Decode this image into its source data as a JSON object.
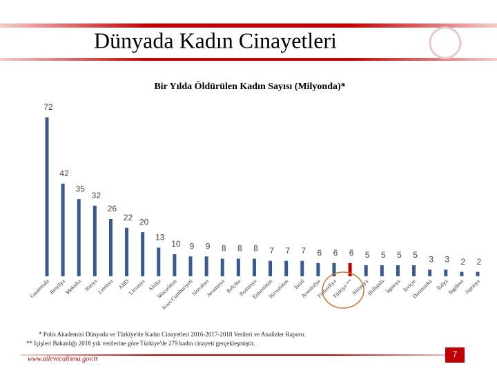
{
  "header": {
    "title": "Dünyada Kadın Cinayetleri"
  },
  "chart_data": {
    "type": "bar",
    "title": "Bir Yılda Öldürülen Kadın Sayısı (Milyonda)*",
    "categories": [
      "Guatemala",
      "Brezilya",
      "Meksika",
      "Rusya",
      "Letonya",
      "ABD",
      "Litvanya",
      "Afrika",
      "Macaristan",
      "Kore Cumhuriyeti",
      "Slovakya",
      "Avusturya",
      "Belçika",
      "Romanya",
      "Ermenistan",
      "Hırvatistan",
      "İsrail",
      "Avustralya",
      "Finlandiya",
      "Türkiye **",
      "Almanya",
      "Hollanda",
      "İspanya",
      "İsviçre",
      "Danimarka",
      "İtalya",
      "İngiltere",
      "Japonya"
    ],
    "values": [
      72,
      42,
      35,
      32,
      26,
      22,
      20,
      13,
      10,
      9,
      9,
      8,
      8,
      8,
      7,
      7,
      7,
      6,
      6,
      6,
      5,
      5,
      5,
      5,
      3,
      3,
      2,
      2
    ],
    "colors": [
      "#3b5a8c",
      "#3b5a8c",
      "#3b5a8c",
      "#3b5a8c",
      "#3b5a8c",
      "#3b5a8c",
      "#3b5a8c",
      "#3b5a8c",
      "#3b5a8c",
      "#3b5a8c",
      "#3b5a8c",
      "#3b5a8c",
      "#3b5a8c",
      "#3b5a8c",
      "#3b5a8c",
      "#3b5a8c",
      "#3b5a8c",
      "#3b5a8c",
      "#3b5a8c",
      "#c00000",
      "#3b5a8c",
      "#3b5a8c",
      "#3b5a8c",
      "#3b5a8c",
      "#3b5a8c",
      "#3b5a8c",
      "#3b5a8c",
      "#3b5a8c"
    ]
  },
  "footnotes": [
    "* Polis Akademisi Dünyada ve Türkiye'de Kadın Cinayetleri 2016-2017-2018 Verileri ve Analizler Raporu.",
    "** İçişleri Bakanlığı 2018 yılı verilerine göre Türkiye'de 279 kadın cinayeti gerçekleşmiştir."
  ],
  "footer": {
    "website": "www.ailevecalisma.gov.tr",
    "page": "7"
  }
}
